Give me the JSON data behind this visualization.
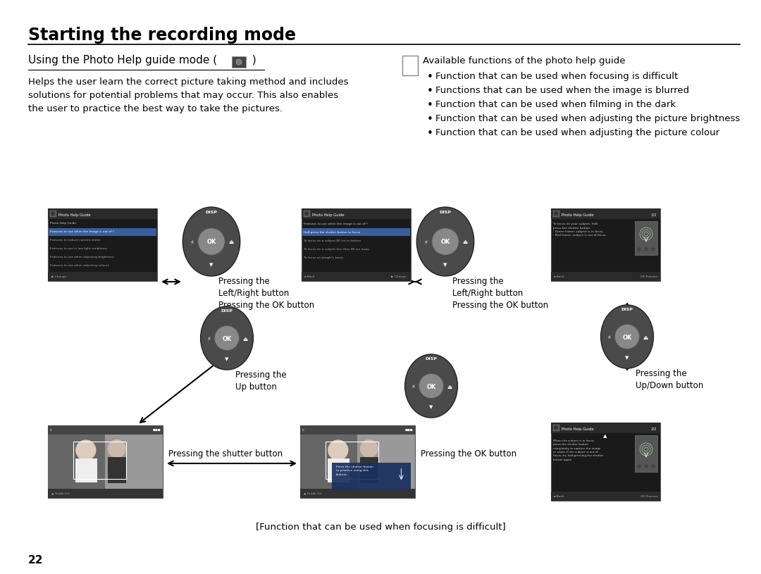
{
  "bg_color": "#ffffff",
  "page_title": "Starting the recording mode",
  "body_text": "Helps the user learn the correct picture taking method and includes\nsolutions for potential problems that may occur. This also enables\nthe user to practice the best way to take the pictures.",
  "note_header": "Available functions of the photo help guide",
  "bullets": [
    "Function that can be used when focusing is difficult",
    "Functions that can be used when the image is blurred",
    "Function that can be used when filming in the dark",
    "Function that can be used when adjusting the picture brightness",
    "Function that can be used when adjusting the picture colour"
  ],
  "caption": "[Function that can be used when focusing is difficult]",
  "page_number": "22"
}
